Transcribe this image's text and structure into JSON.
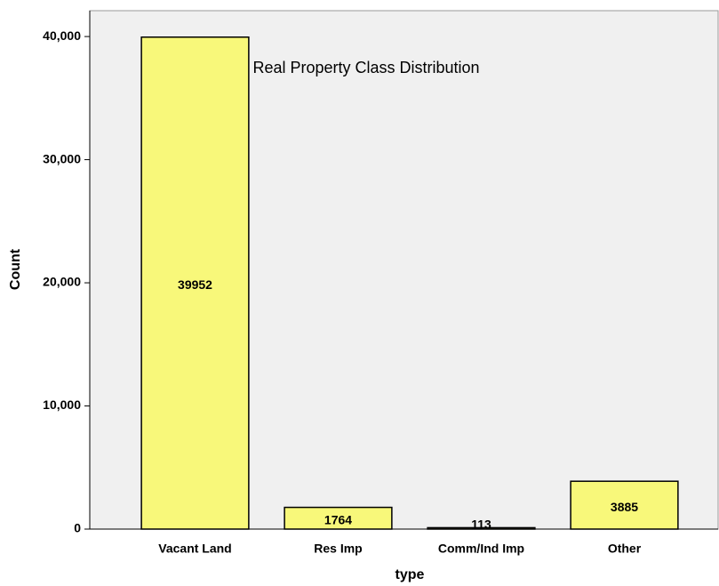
{
  "chart_data": {
    "type": "bar",
    "title": "Real Property Class Distribution",
    "x_label": "type",
    "y_label": "Count",
    "categories": [
      "Vacant Land",
      "Res Imp",
      "Comm/Ind Imp",
      "Other"
    ],
    "values": [
      39952,
      1764,
      113,
      3885
    ],
    "color": "#f8f87a",
    "ylim": [
      0,
      42100
    ],
    "yticks": [
      0,
      {
        "value": 10000,
        "label": "10,000"
      },
      {
        "value": 20000,
        "label": "20,000"
      },
      {
        "value": 30000,
        "label": "30,000"
      },
      {
        "value": 40000,
        "label": "40,000"
      }
    ],
    "grid": false
  }
}
